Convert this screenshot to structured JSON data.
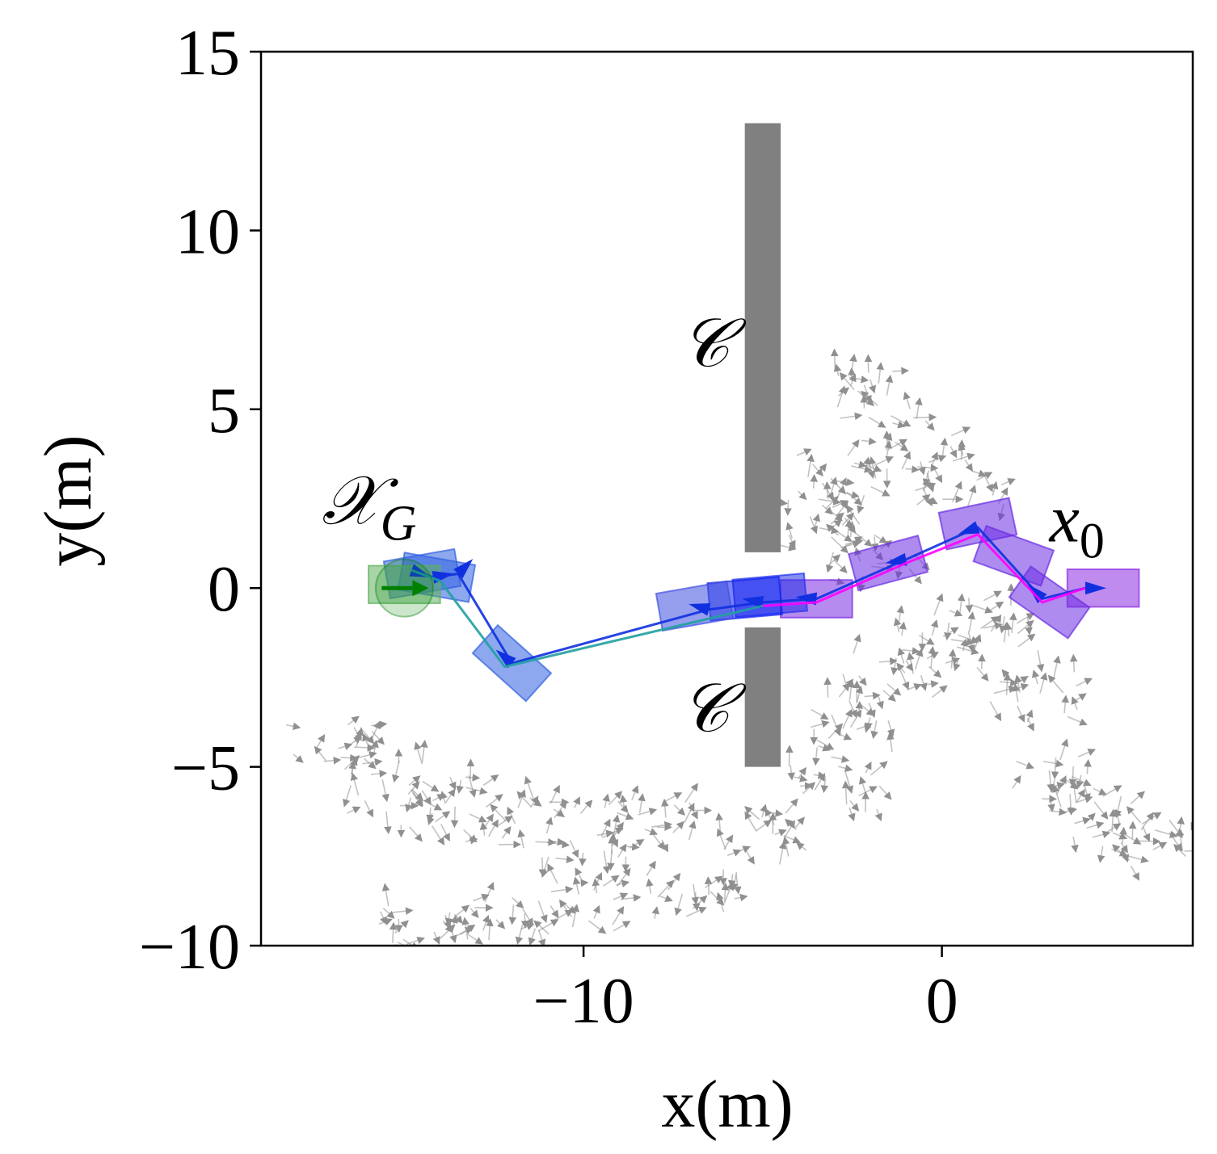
{
  "chart_data": {
    "type": "scatter",
    "title": "",
    "xlabel": "x(m)",
    "ylabel": "y(m)",
    "xlim": [
      -19,
      7
    ],
    "ylim": [
      -10,
      15
    ],
    "xticks": [
      -10,
      0
    ],
    "xtick_labels": [
      "−10",
      "0"
    ],
    "yticks": [
      -10,
      -5,
      0,
      5,
      10,
      15
    ],
    "ytick_labels": [
      "−10",
      "−5",
      "0",
      "5",
      "10",
      "15"
    ],
    "grid": false,
    "legend": "none",
    "annotations": [
      {
        "text": "𝒳",
        "sub": "G",
        "x": -17.3,
        "y": 1.8
      },
      {
        "text": "x",
        "sub": "0",
        "x": 3.0,
        "y": 1.3
      },
      {
        "text": "𝒞",
        "sub": "",
        "x": -7.3,
        "y": 6.2
      },
      {
        "text": "𝒞",
        "sub": "",
        "x": -7.3,
        "y": -4.0
      }
    ],
    "obstacles": [
      {
        "name": "wall-upper",
        "x0": -5.5,
        "x1": -4.5,
        "y0": 1.0,
        "y1": 13.0,
        "color": "#808080"
      },
      {
        "name": "wall-lower",
        "x0": -5.5,
        "x1": -4.5,
        "y0": -5.0,
        "y1": -1.1,
        "color": "#808080"
      }
    ],
    "goal": {
      "x": -15.0,
      "y": 0.0,
      "radius": 0.8,
      "heading": 0,
      "color": "#008000"
    },
    "start": {
      "x": 4.0,
      "y": 0.0,
      "heading": 0,
      "color": "#9932cc"
    },
    "series": [
      {
        "role": "trajectory-blue",
        "color": "#1030e0",
        "x": [
          4.0,
          2.8,
          1.0,
          -1.0,
          -3.5,
          -5.0,
          -6.5,
          -12.0,
          -13.5,
          -14.2,
          -14.8
        ],
        "y": [
          0.0,
          -0.3,
          1.7,
          0.8,
          -0.3,
          -0.4,
          -0.6,
          -2.1,
          0.4,
          0.3,
          0.5
        ],
        "headings": [
          0,
          135,
          200,
          190,
          175,
          170,
          165,
          140,
          45,
          10,
          -20
        ]
      },
      {
        "role": "trajectory-magenta",
        "color": "#ff00ff",
        "x": [
          4.0,
          2.8,
          1.0,
          -1.0,
          -3.5,
          -5.0
        ],
        "y": [
          0.0,
          -0.4,
          1.5,
          0.7,
          -0.4,
          -0.5
        ]
      },
      {
        "role": "trajectory-teal",
        "color": "#20a0a0",
        "x": [
          -5.0,
          -12.2,
          -14.0,
          -14.8
        ],
        "y": [
          -0.5,
          -2.2,
          0.2,
          0.5
        ]
      }
    ],
    "pose_boxes": [
      {
        "x": 4.5,
        "y": 0.0,
        "angle": 0,
        "color": "#8a2be2"
      },
      {
        "x": 3.0,
        "y": -0.4,
        "angle": -35,
        "color": "#6a2be2"
      },
      {
        "x": 2.0,
        "y": 0.9,
        "angle": -20,
        "color": "#6a2be2"
      },
      {
        "x": 1.0,
        "y": 1.8,
        "angle": 12,
        "color": "#6a2be2"
      },
      {
        "x": -1.5,
        "y": 0.7,
        "angle": 15,
        "color": "#6a2be2"
      },
      {
        "x": -3.5,
        "y": -0.3,
        "angle": 0,
        "color": "#7a2be2"
      },
      {
        "x": -4.8,
        "y": -0.2,
        "angle": 5,
        "color": "#2030e8"
      },
      {
        "x": -5.5,
        "y": -0.3,
        "angle": 5,
        "color": "#1020f0"
      },
      {
        "x": -6.9,
        "y": -0.5,
        "angle": 10,
        "color": "#4050e0"
      },
      {
        "x": -12.0,
        "y": -2.1,
        "angle": -42,
        "color": "#3060e0"
      },
      {
        "x": -14.1,
        "y": 0.3,
        "angle": -10,
        "color": "#3060e0"
      },
      {
        "x": -14.5,
        "y": 0.4,
        "angle": 10,
        "color": "#3060e0"
      },
      {
        "x": -15.0,
        "y": 0.1,
        "angle": 0,
        "color": "#60b060"
      }
    ],
    "background_field": {
      "color": "#909090",
      "points_x": [
        -16,
        -15,
        -14,
        -13,
        -12,
        -11,
        -10,
        -9,
        -8,
        -7,
        -6,
        -5,
        -4,
        -3,
        -2,
        -1,
        0,
        1,
        2,
        3,
        4,
        5,
        6
      ],
      "band_centers_y": [
        -4.5,
        -5.8,
        -6.8,
        -7.5,
        -9.3,
        -4.0,
        -2.0,
        0.5,
        2.8,
        4.5
      ],
      "clusters": [
        {
          "x": -17.0,
          "y": -4.5
        },
        {
          "x": -15.5,
          "y": -5.5
        },
        {
          "x": -14.0,
          "y": -6.0
        },
        {
          "x": -12.0,
          "y": -6.5
        },
        {
          "x": -10.0,
          "y": -6.8
        },
        {
          "x": -8.0,
          "y": -6.5
        },
        {
          "x": -5.0,
          "y": -7.0
        },
        {
          "x": -3.0,
          "y": -5.5
        },
        {
          "x": -2.5,
          "y": -3.8
        },
        {
          "x": -1.5,
          "y": -2.5
        },
        {
          "x": 0.0,
          "y": -1.5
        },
        {
          "x": 1.5,
          "y": -1.0
        },
        {
          "x": 2.5,
          "y": -3.0
        },
        {
          "x": 3.0,
          "y": -5.5
        },
        {
          "x": 4.5,
          "y": -6.5
        },
        {
          "x": 6.0,
          "y": -7.0
        },
        {
          "x": -14.5,
          "y": -9.5
        },
        {
          "x": -12.5,
          "y": -9.3
        },
        {
          "x": -10.0,
          "y": -9.0
        },
        {
          "x": -7.0,
          "y": -8.5
        },
        {
          "x": -3.0,
          "y": 3.0
        },
        {
          "x": -2.0,
          "y": 5.5
        },
        {
          "x": -1.0,
          "y": 4.0
        },
        {
          "x": 0.5,
          "y": 3.0
        },
        {
          "x": -3.5,
          "y": 2.0
        },
        {
          "x": -2.0,
          "y": 1.0
        }
      ]
    }
  }
}
